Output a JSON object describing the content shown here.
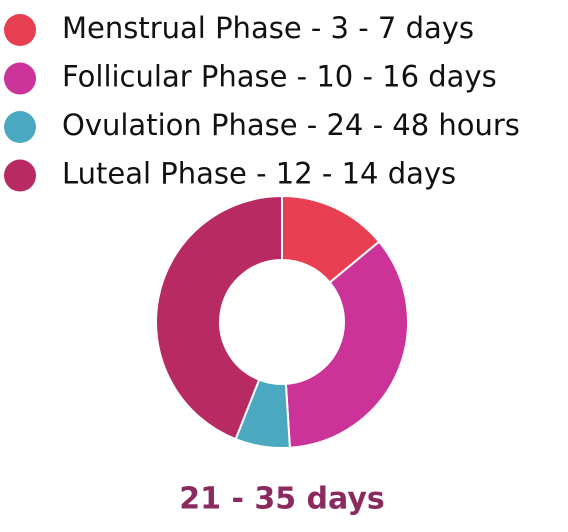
{
  "chart_data": {
    "type": "donut",
    "categories": [
      "Menstrual Phase - 3 - 7 days",
      "Follicular Phase - 10 - 16 days",
      "Ovulation Phase - 24 - 48 hours",
      "Luteal Phase - 12 - 14 days"
    ],
    "values": [
      14,
      35,
      7,
      44
    ],
    "colors": [
      "#e83e52",
      "#cc3399",
      "#4aa8c0",
      "#b82a62"
    ],
    "annotation": "21 - 35 days"
  }
}
